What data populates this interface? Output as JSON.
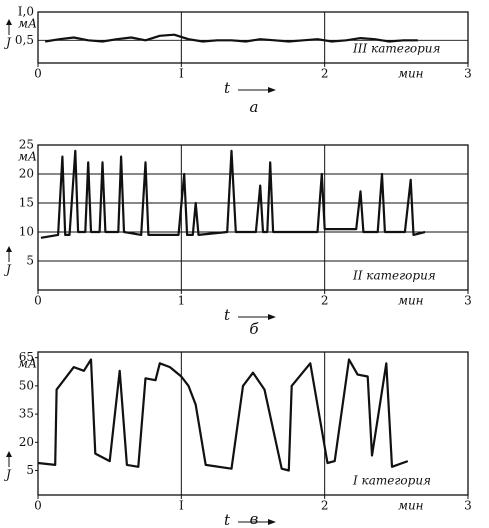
{
  "chart_data": [
    {
      "type": "line",
      "panel_label": "а",
      "annotation": "III категория",
      "y_label": "мА",
      "y_symbol": "J",
      "x_label": "t",
      "x_unit": "мин",
      "x": [
        0.05,
        0.15,
        0.25,
        0.35,
        0.45,
        0.55,
        0.65,
        0.75,
        0.85,
        0.95,
        1.05,
        1.15,
        1.25,
        1.35,
        1.45,
        1.55,
        1.65,
        1.75,
        1.85,
        1.95,
        2.05,
        2.15,
        2.25,
        2.35,
        2.45,
        2.55,
        2.65
      ],
      "values": [
        0.48,
        0.52,
        0.55,
        0.5,
        0.48,
        0.52,
        0.55,
        0.5,
        0.58,
        0.6,
        0.52,
        0.48,
        0.5,
        0.5,
        0.48,
        0.52,
        0.5,
        0.48,
        0.5,
        0.52,
        0.48,
        0.5,
        0.54,
        0.52,
        0.48,
        0.5,
        0.5
      ],
      "color": "#111111",
      "xlim": [
        0,
        3
      ],
      "xticks": [
        0,
        {
          "value": 1,
          "label": "I"
        },
        2,
        3
      ],
      "ylim": [
        0.1,
        1.0
      ],
      "yticks": [
        {
          "value": 0.5,
          "label": "0,5"
        },
        {
          "value": 1.0,
          "label": "I,0"
        }
      ],
      "grid": true
    },
    {
      "type": "line",
      "panel_label": "б",
      "annotation": "II категория",
      "y_label": "мА",
      "y_symbol": "J",
      "x_label": "t",
      "x_unit": "мин",
      "x": [
        0.02,
        0.14,
        0.17,
        0.19,
        0.22,
        0.26,
        0.28,
        0.33,
        0.35,
        0.37,
        0.43,
        0.45,
        0.47,
        0.56,
        0.58,
        0.6,
        0.72,
        0.75,
        0.77,
        0.98,
        1.02,
        1.04,
        1.08,
        1.1,
        1.12,
        1.32,
        1.35,
        1.38,
        1.52,
        1.55,
        1.57,
        1.6,
        1.62,
        1.64,
        1.95,
        1.98,
        2.0,
        2.22,
        2.25,
        2.27,
        2.37,
        2.4,
        2.42,
        2.56,
        2.6,
        2.62,
        2.7
      ],
      "values": [
        9,
        9.5,
        23,
        9.5,
        9.5,
        24,
        10,
        10,
        22,
        10,
        10,
        22,
        10,
        10,
        23,
        10,
        9.5,
        22,
        9.5,
        9.5,
        20,
        9.5,
        9.5,
        15,
        9.5,
        10,
        24,
        10,
        10,
        18,
        10,
        10,
        22,
        10,
        10,
        20,
        10.5,
        10.5,
        17,
        10,
        10,
        20,
        10,
        10,
        19,
        9.5,
        10
      ],
      "color": "#111111",
      "xlim": [
        0,
        3
      ],
      "xticks": [
        0,
        1,
        2,
        3
      ],
      "ylim": [
        0,
        25
      ],
      "yticks": [
        5,
        10,
        15,
        20,
        25
      ],
      "grid": true
    },
    {
      "type": "line",
      "panel_label": "в",
      "annotation": "I категория",
      "y_label": "мА",
      "y_symbol": "J",
      "x_label": "t",
      "x_unit": "мин",
      "x": [
        0,
        0.12,
        0.13,
        0.25,
        0.32,
        0.37,
        0.4,
        0.5,
        0.57,
        0.62,
        0.7,
        0.75,
        0.82,
        0.85,
        0.92,
        1.0,
        1.05,
        1.1,
        1.17,
        1.35,
        1.43,
        1.5,
        1.58,
        1.7,
        1.75,
        1.77,
        1.9,
        2.02,
        2.07,
        2.17,
        2.23,
        2.3,
        2.33,
        2.43,
        2.47,
        2.58
      ],
      "values": [
        9,
        8,
        48,
        60,
        58,
        64,
        14,
        10,
        58,
        8,
        7,
        54,
        53,
        62,
        60,
        55,
        50,
        40,
        8,
        6,
        50,
        57,
        48,
        6,
        5,
        50,
        62,
        9,
        10,
        64,
        56,
        55,
        13,
        62,
        7,
        10
      ],
      "color": "#111111",
      "xlim": [
        0,
        3
      ],
      "xticks": [
        0,
        {
          "value": 1,
          "label": "I"
        },
        2,
        3
      ],
      "ylim": [
        -8,
        68
      ],
      "yticks": [
        5,
        20,
        35,
        50,
        65
      ],
      "grid": false
    }
  ]
}
